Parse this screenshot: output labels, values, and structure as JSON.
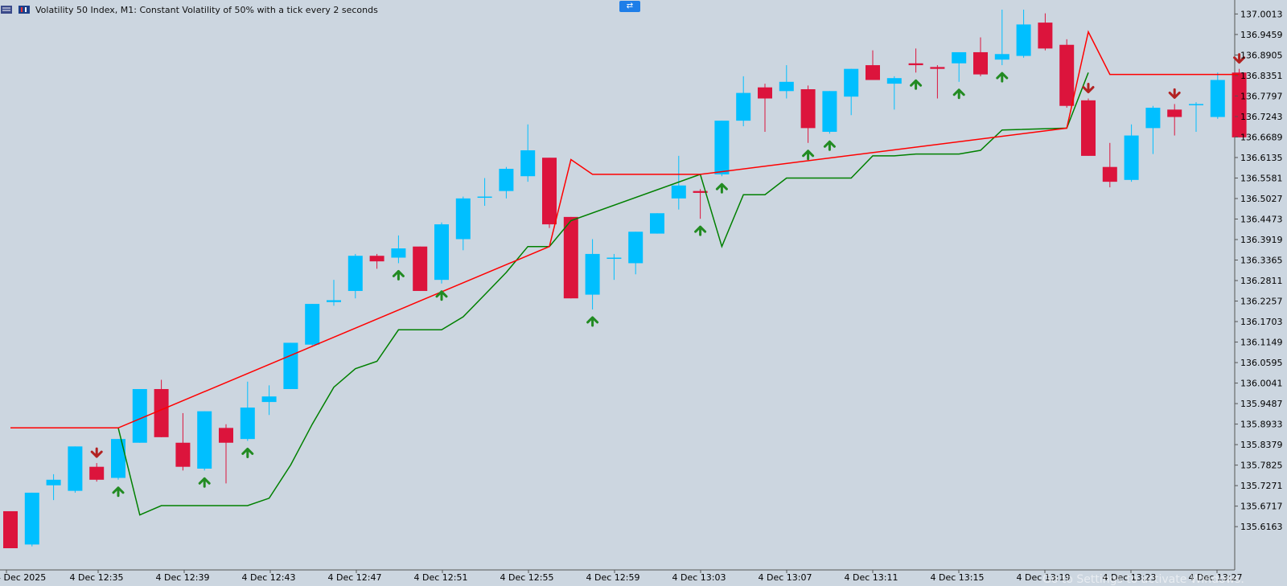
{
  "header": {
    "title": "Volatility 50 Index, M1:  Constant Volatility of 50% with a tick every 2 seconds"
  },
  "watermark": "Go to Settings to activate Windows.",
  "colors": {
    "background": "#ccd6e0",
    "bull": "#00bfff",
    "bear": "#dc143c",
    "support_line": "#008000",
    "resistance_line": "#ff0000",
    "arrow_up": "#228b22",
    "arrow_down": "#b22222",
    "axis_text": "#000000"
  },
  "chart_data": {
    "type": "candlestick",
    "title": "Volatility 50 Index, M1:  Constant Volatility of 50% with a tick every 2 seconds",
    "ylim": [
      135.558,
      137.013
    ],
    "y_ticks": [
      "137.0013",
      "136.9459",
      "136.8905",
      "136.8351",
      "136.7797",
      "136.7243",
      "136.6689",
      "136.6135",
      "136.5581",
      "136.5027",
      "136.4473",
      "136.3919",
      "136.3365",
      "136.2811",
      "136.2257",
      "136.1703",
      "136.1149",
      "136.0595",
      "136.0041",
      "135.9487",
      "135.8933",
      "135.8379",
      "135.7825",
      "135.7271",
      "135.6717",
      "135.6163"
    ],
    "x_ticks": [
      "4 Dec 2025",
      "4 Dec 12:35",
      "4 Dec 12:39",
      "4 Dec 12:43",
      "4 Dec 12:47",
      "4 Dec 12:51",
      "4 Dec 12:55",
      "4 Dec 12:59",
      "4 Dec 13:03",
      "4 Dec 13:07",
      "4 Dec 13:11",
      "4 Dec 13:15",
      "4 Dec 13:19",
      "4 Dec 13:23",
      "4 Dec 13:27"
    ],
    "candles": [
      {
        "t": "12:30",
        "o": 135.658,
        "h": 135.658,
        "l": 135.558,
        "c": 135.558
      },
      {
        "t": "12:31",
        "o": 135.568,
        "h": 135.708,
        "l": 135.563,
        "c": 135.708
      },
      {
        "t": "12:32",
        "o": 135.728,
        "h": 135.758,
        "l": 135.688,
        "c": 135.743
      },
      {
        "t": "12:33",
        "o": 135.713,
        "h": 135.833,
        "l": 135.708,
        "c": 135.833
      },
      {
        "t": "12:34",
        "o": 135.778,
        "h": 135.788,
        "l": 135.738,
        "c": 135.743
      },
      {
        "t": "12:35",
        "o": 135.748,
        "h": 135.853,
        "l": 135.743,
        "c": 135.853
      },
      {
        "t": "12:36",
        "o": 135.843,
        "h": 135.988,
        "l": 135.843,
        "c": 135.988
      },
      {
        "t": "12:37",
        "o": 135.988,
        "h": 136.013,
        "l": 135.858,
        "c": 135.858
      },
      {
        "t": "12:38",
        "o": 135.843,
        "h": 135.923,
        "l": 135.768,
        "c": 135.778
      },
      {
        "t": "12:39",
        "o": 135.773,
        "h": 135.928,
        "l": 135.768,
        "c": 135.928
      },
      {
        "t": "12:40",
        "o": 135.883,
        "h": 135.893,
        "l": 135.733,
        "c": 135.843
      },
      {
        "t": "12:41",
        "o": 135.853,
        "h": 136.008,
        "l": 135.848,
        "c": 135.938
      },
      {
        "t": "12:42",
        "o": 135.953,
        "h": 135.998,
        "l": 135.918,
        "c": 135.968
      },
      {
        "t": "12:43",
        "o": 135.988,
        "h": 136.113,
        "l": 135.988,
        "c": 136.113
      },
      {
        "t": "12:44",
        "o": 136.108,
        "h": 136.218,
        "l": 136.103,
        "c": 136.218
      },
      {
        "t": "12:45",
        "o": 136.223,
        "h": 136.283,
        "l": 136.213,
        "c": 136.228
      },
      {
        "t": "12:46",
        "o": 136.253,
        "h": 136.353,
        "l": 136.233,
        "c": 136.348
      },
      {
        "t": "12:47",
        "o": 136.348,
        "h": 136.353,
        "l": 136.313,
        "c": 136.333
      },
      {
        "t": "12:48",
        "o": 136.343,
        "h": 136.403,
        "l": 136.328,
        "c": 136.368
      },
      {
        "t": "12:49",
        "o": 136.373,
        "h": 136.373,
        "l": 136.253,
        "c": 136.253
      },
      {
        "t": "12:50",
        "o": 136.283,
        "h": 136.438,
        "l": 136.273,
        "c": 136.433
      },
      {
        "t": "12:51",
        "o": 136.393,
        "h": 136.508,
        "l": 136.363,
        "c": 136.503
      },
      {
        "t": "12:52",
        "o": 136.508,
        "h": 136.558,
        "l": 136.483,
        "c": 136.508
      },
      {
        "t": "12:53",
        "o": 136.523,
        "h": 136.588,
        "l": 136.503,
        "c": 136.583
      },
      {
        "t": "12:54",
        "o": 136.563,
        "h": 136.703,
        "l": 136.548,
        "c": 136.633
      },
      {
        "t": "12:55",
        "o": 136.613,
        "h": 136.613,
        "l": 136.423,
        "c": 136.433
      },
      {
        "t": "12:56",
        "o": 136.453,
        "h": 136.453,
        "l": 136.233,
        "c": 136.233
      },
      {
        "t": "12:57",
        "o": 136.243,
        "h": 136.393,
        "l": 136.203,
        "c": 136.353
      },
      {
        "t": "12:58",
        "o": 136.343,
        "h": 136.353,
        "l": 136.283,
        "c": 136.343
      },
      {
        "t": "12:59",
        "o": 136.328,
        "h": 136.413,
        "l": 136.298,
        "c": 136.413
      },
      {
        "t": "13:00",
        "o": 136.408,
        "h": 136.463,
        "l": 136.408,
        "c": 136.463
      },
      {
        "t": "13:01",
        "o": 136.503,
        "h": 136.618,
        "l": 136.473,
        "c": 136.538
      },
      {
        "t": "13:02",
        "o": 136.523,
        "h": 136.528,
        "l": 136.448,
        "c": 136.518
      },
      {
        "t": "13:03",
        "o": 136.568,
        "h": 136.713,
        "l": 136.563,
        "c": 136.713
      },
      {
        "t": "13:04",
        "o": 136.713,
        "h": 136.833,
        "l": 136.698,
        "c": 136.788
      },
      {
        "t": "13:05",
        "o": 136.803,
        "h": 136.813,
        "l": 136.683,
        "c": 136.773
      },
      {
        "t": "13:06",
        "o": 136.793,
        "h": 136.863,
        "l": 136.773,
        "c": 136.818
      },
      {
        "t": "13:07",
        "o": 136.798,
        "h": 136.808,
        "l": 136.653,
        "c": 136.693
      },
      {
        "t": "13:08",
        "o": 136.683,
        "h": 136.793,
        "l": 136.678,
        "c": 136.793
      },
      {
        "t": "13:09",
        "o": 136.778,
        "h": 136.853,
        "l": 136.728,
        "c": 136.853
      },
      {
        "t": "13:10",
        "o": 136.863,
        "h": 136.903,
        "l": 136.823,
        "c": 136.823
      },
      {
        "t": "13:11",
        "o": 136.813,
        "h": 136.833,
        "l": 136.743,
        "c": 136.828
      },
      {
        "t": "13:12",
        "o": 136.868,
        "h": 136.908,
        "l": 136.843,
        "c": 136.863
      },
      {
        "t": "13:13",
        "o": 136.858,
        "h": 136.863,
        "l": 136.773,
        "c": 136.853
      },
      {
        "t": "13:14",
        "o": 136.868,
        "h": 136.893,
        "l": 136.818,
        "c": 136.898
      },
      {
        "t": "13:15",
        "o": 136.898,
        "h": 136.938,
        "l": 136.833,
        "c": 136.838
      },
      {
        "t": "13:16",
        "o": 136.878,
        "h": 137.013,
        "l": 136.863,
        "c": 136.893
      },
      {
        "t": "13:17",
        "o": 136.888,
        "h": 137.013,
        "l": 136.883,
        "c": 136.973
      },
      {
        "t": "13:18",
        "o": 136.978,
        "h": 137.003,
        "l": 136.903,
        "c": 136.908
      },
      {
        "t": "13:19",
        "o": 136.918,
        "h": 136.933,
        "l": 136.748,
        "c": 136.753
      },
      {
        "t": "13:20",
        "o": 136.768,
        "h": 136.773,
        "l": 136.618,
        "c": 136.618
      },
      {
        "t": "13:21",
        "o": 136.588,
        "h": 136.653,
        "l": 136.533,
        "c": 136.548
      },
      {
        "t": "13:22",
        "o": 136.553,
        "h": 136.703,
        "l": 136.548,
        "c": 136.673
      },
      {
        "t": "13:23",
        "o": 136.693,
        "h": 136.753,
        "l": 136.623,
        "c": 136.748
      },
      {
        "t": "13:24",
        "o": 136.743,
        "h": 136.758,
        "l": 136.673,
        "c": 136.723
      },
      {
        "t": "13:25",
        "o": 136.758,
        "h": 136.763,
        "l": 136.683,
        "c": 136.758
      },
      {
        "t": "13:26",
        "o": 136.723,
        "h": 136.843,
        "l": 136.718,
        "c": 136.823
      },
      {
        "t": "13:27",
        "o": 136.843,
        "h": 136.853,
        "l": 136.668,
        "c": 136.668
      }
    ],
    "support_line": [
      {
        "t": "12:30",
        "v": null
      },
      {
        "t": "12:35",
        "v": 135.883
      },
      {
        "t": "12:36",
        "v": 135.648
      },
      {
        "t": "12:37",
        "v": 135.673
      },
      {
        "t": "12:41",
        "v": 135.673
      },
      {
        "t": "12:42",
        "v": 135.693
      },
      {
        "t": "12:43",
        "v": 135.783
      },
      {
        "t": "12:44",
        "v": 135.893
      },
      {
        "t": "12:45",
        "v": 135.993
      },
      {
        "t": "12:46",
        "v": 136.043
      },
      {
        "t": "12:47",
        "v": 136.063
      },
      {
        "t": "12:48",
        "v": 136.148
      },
      {
        "t": "12:50",
        "v": 136.148
      },
      {
        "t": "12:51",
        "v": 136.183
      },
      {
        "t": "12:52",
        "v": 136.243
      },
      {
        "t": "12:53",
        "v": 136.303
      },
      {
        "t": "12:54",
        "v": 136.373
      },
      {
        "t": "12:55",
        "v": 136.373
      },
      {
        "t": "12:56",
        "v": 136.443
      },
      {
        "t": "13:02",
        "v": 136.568
      },
      {
        "t": "13:03",
        "v": 136.373
      },
      {
        "t": "13:04",
        "v": 136.513
      },
      {
        "t": "13:05",
        "v": 136.513
      },
      {
        "t": "13:06",
        "v": 136.558
      },
      {
        "t": "13:09",
        "v": 136.558
      },
      {
        "t": "13:10",
        "v": 136.618
      },
      {
        "t": "13:11",
        "v": 136.618
      },
      {
        "t": "13:12",
        "v": 136.623
      },
      {
        "t": "13:14",
        "v": 136.623
      },
      {
        "t": "13:15",
        "v": 136.633
      },
      {
        "t": "13:16",
        "v": 136.688
      },
      {
        "t": "13:19",
        "v": 136.693
      },
      {
        "t": "13:20",
        "v": 136.843
      }
    ],
    "resistance_line": [
      {
        "t": "12:30",
        "v": 135.883
      },
      {
        "t": "12:35",
        "v": 135.883
      },
      {
        "t": "12:55",
        "v": 136.373
      },
      {
        "t": "12:56",
        "v": 136.608
      },
      {
        "t": "12:57",
        "v": 136.568
      },
      {
        "t": "13:02",
        "v": 136.568
      },
      {
        "t": "13:19",
        "v": 136.693
      },
      {
        "t": "13:20",
        "v": 136.953
      },
      {
        "t": "13:21",
        "v": 136.838
      },
      {
        "t": "13:27",
        "v": 136.838
      }
    ],
    "arrows_up": [
      "12:35",
      "12:39",
      "12:41",
      "12:48",
      "12:50",
      "12:57",
      "13:02",
      "13:03",
      "13:07",
      "13:08",
      "13:12",
      "13:14",
      "13:16"
    ],
    "arrows_down": [
      "12:34",
      "13:20",
      "13:24",
      "13:27"
    ]
  }
}
